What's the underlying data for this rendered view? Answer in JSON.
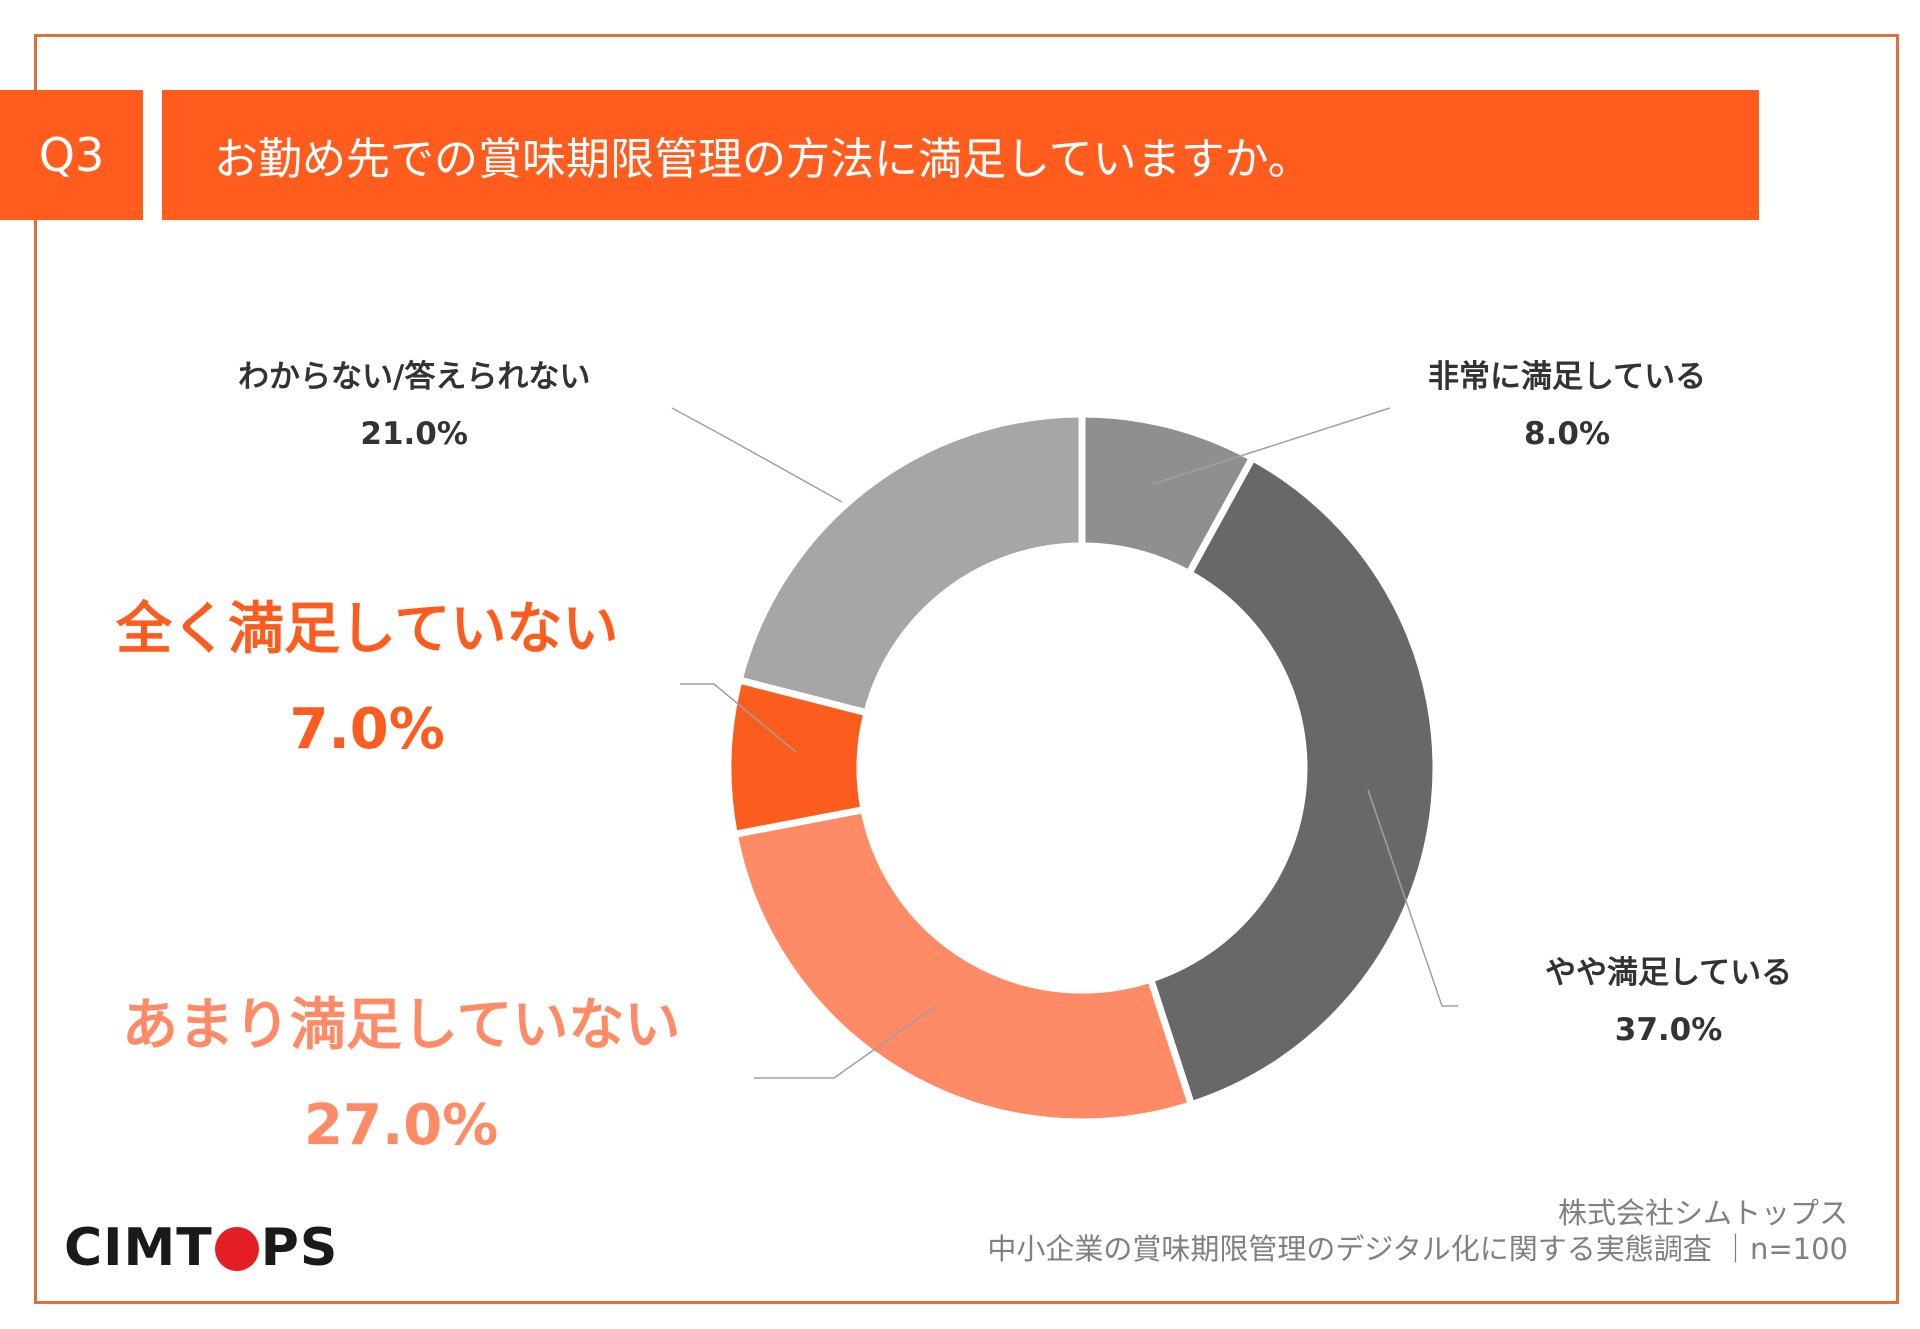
{
  "header": {
    "question_badge": "Q3",
    "title": "お勤め先での賞味期限管理の方法に満足していますか。"
  },
  "colors": {
    "accent": "#ff5c1e",
    "frame": "#e0703a",
    "very_satisfied": "#8f8f8f",
    "somewhat_satisfied": "#686868",
    "not_very_satisfied": "#fe8a66",
    "not_at_all_satisfied": "#fc5c1d",
    "dont_know": "#a6a6a6"
  },
  "chart_data": {
    "type": "pie",
    "variant": "donut",
    "unit": "%",
    "slices": [
      {
        "label": "非常に満足している",
        "value": 8.0,
        "display": "8.0%",
        "color": "#8f8f8f"
      },
      {
        "label": "やや満足している",
        "value": 37.0,
        "display": "37.0%",
        "color": "#686868"
      },
      {
        "label": "あまり満足していない",
        "value": 27.0,
        "display": "27.0%",
        "color": "#fe8a66"
      },
      {
        "label": "全く満足していない",
        "value": 7.0,
        "display": "7.0%",
        "color": "#fc5c1d"
      },
      {
        "label": "わからない/答えられない",
        "value": 21.0,
        "display": "21.0%",
        "color": "#a6a6a6"
      }
    ]
  },
  "logo": {
    "before": "CIMT",
    "after": "PS"
  },
  "footer": {
    "company": "株式会社シムトップス",
    "survey": "中小企業の賞味期限管理のデジタル化に関する実態調査 ｜n=100"
  }
}
